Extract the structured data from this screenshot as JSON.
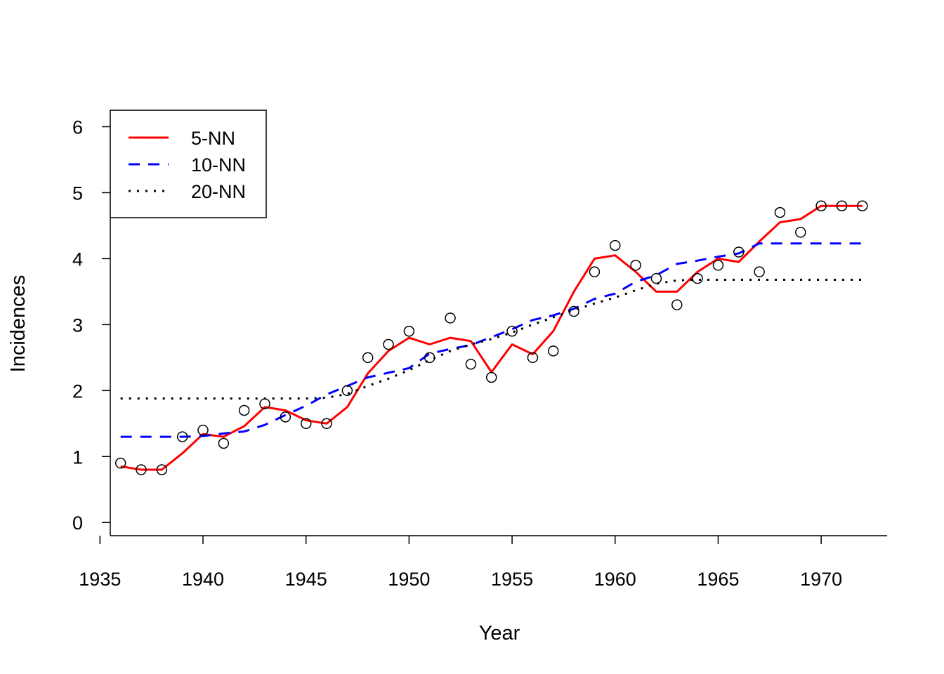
{
  "chart_data": {
    "type": "line",
    "title": "",
    "xlabel": "Year",
    "ylabel": "Incidences",
    "xlim": [
      1935.5,
      1973.2
    ],
    "ylim": [
      -0.2,
      6.25
    ],
    "xticks": [
      1935,
      1940,
      1945,
      1950,
      1955,
      1960,
      1965,
      1970
    ],
    "yticks": [
      0,
      1,
      2,
      3,
      4,
      5,
      6
    ],
    "grid": false,
    "legend_position": "top-left",
    "points": {
      "x": [
        1936,
        1937,
        1938,
        1939,
        1940,
        1941,
        1942,
        1943,
        1944,
        1945,
        1946,
        1947,
        1948,
        1949,
        1950,
        1951,
        1952,
        1953,
        1954,
        1955,
        1956,
        1957,
        1958,
        1959,
        1960,
        1961,
        1962,
        1963,
        1964,
        1965,
        1966,
        1967,
        1968,
        1969,
        1970,
        1971,
        1972
      ],
      "y": [
        0.9,
        0.8,
        0.8,
        1.3,
        1.4,
        1.2,
        1.7,
        1.8,
        1.6,
        1.5,
        1.5,
        2.0,
        2.5,
        2.7,
        2.9,
        2.5,
        3.1,
        2.4,
        2.2,
        2.9,
        2.5,
        2.6,
        3.2,
        3.8,
        4.2,
        3.9,
        3.7,
        3.3,
        3.7,
        3.9,
        4.1,
        3.8,
        4.7,
        4.4,
        4.8,
        4.8,
        4.8
      ]
    },
    "series": [
      {
        "name": "5-NN",
        "color": "#ff0000",
        "dash": "solid",
        "x": [
          1936,
          1937,
          1938,
          1939,
          1940,
          1941,
          1942,
          1943,
          1944,
          1945,
          1946,
          1947,
          1948,
          1949,
          1950,
          1951,
          1952,
          1953,
          1954,
          1955,
          1956,
          1957,
          1958,
          1959,
          1960,
          1961,
          1962,
          1963,
          1964,
          1965,
          1966,
          1967,
          1968,
          1969,
          1970,
          1971,
          1972
        ],
        "y": [
          0.85,
          0.8,
          0.8,
          1.05,
          1.34,
          1.3,
          1.46,
          1.75,
          1.7,
          1.55,
          1.5,
          1.75,
          2.26,
          2.6,
          2.8,
          2.7,
          2.8,
          2.75,
          2.28,
          2.7,
          2.55,
          2.9,
          3.5,
          4.0,
          4.05,
          3.8,
          3.5,
          3.5,
          3.8,
          4.0,
          3.95,
          4.26,
          4.55,
          4.6,
          4.8,
          4.8,
          4.8
        ]
      },
      {
        "name": "10-NN",
        "color": "#0000ff",
        "dash": "dashed",
        "x": [
          1936,
          1937,
          1938,
          1939,
          1940,
          1941,
          1942,
          1943,
          1944,
          1945,
          1946,
          1947,
          1948,
          1949,
          1950,
          1951,
          1952,
          1953,
          1954,
          1955,
          1956,
          1957,
          1958,
          1959,
          1960,
          1961,
          1962,
          1963,
          1964,
          1965,
          1966,
          1967,
          1968,
          1969,
          1970,
          1971,
          1972
        ],
        "y": [
          1.3,
          1.3,
          1.3,
          1.3,
          1.31,
          1.35,
          1.38,
          1.48,
          1.63,
          1.77,
          1.94,
          2.07,
          2.2,
          2.27,
          2.34,
          2.56,
          2.63,
          2.69,
          2.81,
          2.93,
          3.07,
          3.14,
          3.24,
          3.39,
          3.47,
          3.65,
          3.75,
          3.92,
          3.97,
          4.03,
          4.08,
          4.23,
          4.23,
          4.23,
          4.23,
          4.23,
          4.23
        ]
      },
      {
        "name": "20-NN",
        "color": "#000000",
        "dash": "dotted",
        "x": [
          1936,
          1937,
          1938,
          1939,
          1940,
          1941,
          1942,
          1943,
          1944,
          1945,
          1946,
          1947,
          1948,
          1949,
          1950,
          1951,
          1952,
          1953,
          1954,
          1955,
          1956,
          1957,
          1958,
          1959,
          1960,
          1961,
          1962,
          1963,
          1964,
          1965,
          1966,
          1967,
          1968,
          1969,
          1970,
          1971,
          1972
        ],
        "y": [
          1.88,
          1.88,
          1.88,
          1.88,
          1.88,
          1.88,
          1.88,
          1.88,
          1.88,
          1.88,
          1.89,
          1.95,
          2.07,
          2.18,
          2.31,
          2.46,
          2.6,
          2.7,
          2.78,
          2.88,
          3.0,
          3.11,
          3.22,
          3.32,
          3.41,
          3.52,
          3.62,
          3.67,
          3.68,
          3.68,
          3.68,
          3.68,
          3.68,
          3.68,
          3.68,
          3.68,
          3.68
        ]
      }
    ]
  }
}
